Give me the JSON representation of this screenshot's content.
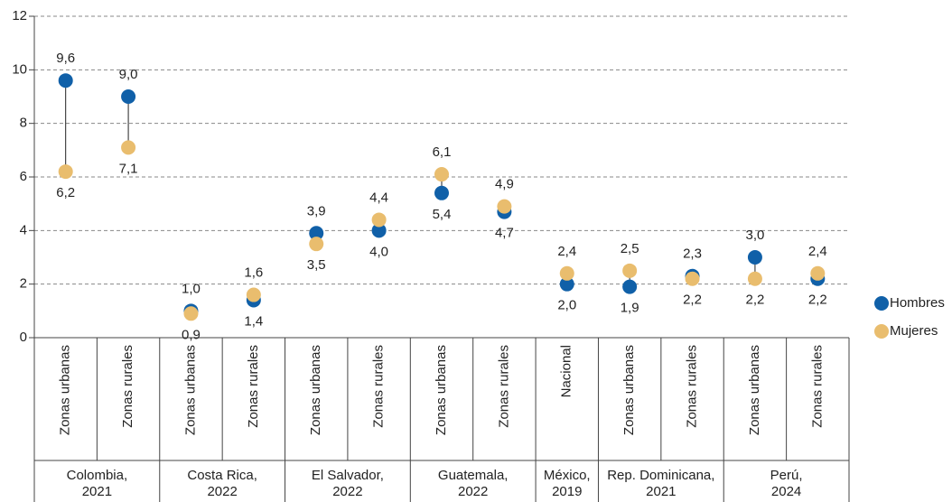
{
  "chart_data": {
    "type": "dumbbell",
    "groups": [
      {
        "name": "Colombia,\n2021",
        "categories": [
          "Zonas urbanas",
          "Zonas rurales"
        ]
      },
      {
        "name": "Costa Rica,\n2022",
        "categories": [
          "Zonas urbanas",
          "Zonas rurales"
        ]
      },
      {
        "name": "El Salvador,\n2022",
        "categories": [
          "Zonas urbanas",
          "Zonas rurales"
        ]
      },
      {
        "name": "Guatemala,\n2022",
        "categories": [
          "Zonas urbanas",
          "Zonas rurales"
        ]
      },
      {
        "name": "México,\n2019",
        "categories": [
          "Nacional"
        ]
      },
      {
        "name": "Rep. Dominicana,\n2021",
        "categories": [
          "Zonas urbanas",
          "Zonas rurales"
        ]
      },
      {
        "name": "Perú,\n2024",
        "categories": [
          "Zonas urbanas",
          "Zonas rurales"
        ]
      }
    ],
    "series": [
      {
        "name": "Hombres",
        "color": "#1060a8",
        "values": [
          9.6,
          9.0,
          1.0,
          1.4,
          3.9,
          4.0,
          5.4,
          4.7,
          2.0,
          1.9,
          2.3,
          3.0,
          2.2
        ],
        "value_labels": [
          "9,6",
          "9,0",
          "1,0",
          "1,4",
          "3,9",
          "4,0",
          "5,4",
          "4,7",
          "2,0",
          "1,9",
          "2,3",
          "3,0",
          "2,2"
        ]
      },
      {
        "name": "Mujeres",
        "color": "#e9bd6e",
        "values": [
          6.2,
          7.1,
          0.9,
          1.6,
          3.5,
          4.4,
          6.1,
          4.9,
          2.4,
          2.5,
          2.2,
          2.2,
          2.4
        ],
        "value_labels": [
          "6,2",
          "7,1",
          "0,9",
          "1,6",
          "3,5",
          "4,4",
          "6,1",
          "4,9",
          "2,4",
          "2,5",
          "2,2",
          "2,2",
          "2,4"
        ]
      }
    ],
    "ylim": [
      0,
      12
    ],
    "yticks": [
      0,
      2,
      4,
      6,
      8,
      10,
      12
    ],
    "grid": true,
    "legend": "right"
  }
}
